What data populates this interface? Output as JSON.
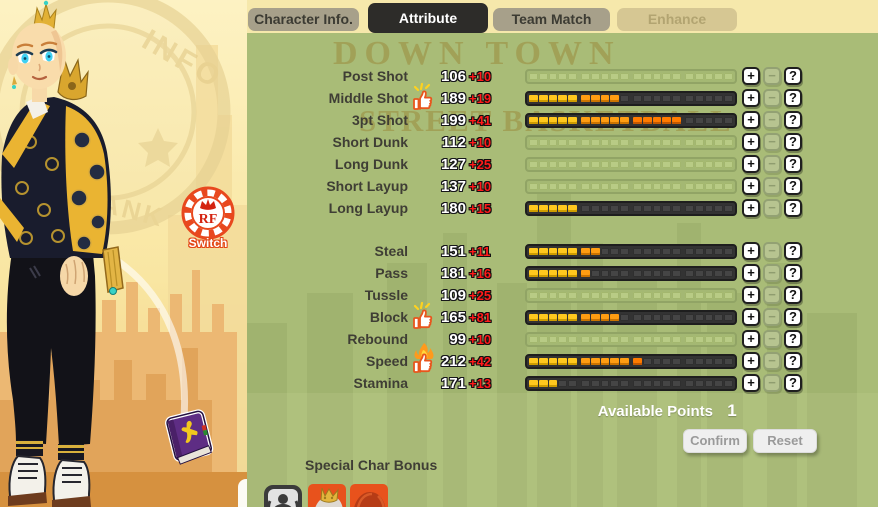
{
  "tabs": [
    {
      "label": "Character Info.",
      "state": "inactive"
    },
    {
      "label": "Attribute",
      "state": "active"
    },
    {
      "label": "Team Match",
      "state": "inactive"
    },
    {
      "label": "Enhance",
      "state": "disabled"
    }
  ],
  "watermark": {
    "line1": "DOWN TOWN",
    "line2": "STREET BASKETBALL"
  },
  "left_panel": {
    "rf_switch": {
      "initials": "RF",
      "label": "Switch"
    },
    "item": "skill-book"
  },
  "attributes": {
    "group1": [
      {
        "label": "Post Shot",
        "value": 106,
        "bonus": "+10",
        "filled": 0,
        "faded": true,
        "icon": null
      },
      {
        "label": "Middle Shot",
        "value": 189,
        "bonus": "+19",
        "filled": 9,
        "faded": false,
        "icon": "thumbs-up"
      },
      {
        "label": "3pt Shot",
        "value": 199,
        "bonus": "+41",
        "filled": 15,
        "faded": false,
        "icon": null
      },
      {
        "label": "Short Dunk",
        "value": 112,
        "bonus": "+10",
        "filled": 0,
        "faded": true,
        "icon": null
      },
      {
        "label": "Long Dunk",
        "value": 127,
        "bonus": "+25",
        "filled": 0,
        "faded": true,
        "icon": null
      },
      {
        "label": "Short Layup",
        "value": 137,
        "bonus": "+10",
        "filled": 0,
        "faded": true,
        "icon": null
      },
      {
        "label": "Long Layup",
        "value": 180,
        "bonus": "+15",
        "filled": 5,
        "faded": false,
        "icon": null
      }
    ],
    "group2": [
      {
        "label": "Steal",
        "value": 151,
        "bonus": "+11",
        "filled": 7,
        "faded": false,
        "icon": null
      },
      {
        "label": "Pass",
        "value": 181,
        "bonus": "+16",
        "filled": 6,
        "faded": false,
        "icon": null
      },
      {
        "label": "Tussle",
        "value": 109,
        "bonus": "+25",
        "filled": 0,
        "faded": true,
        "icon": null
      },
      {
        "label": "Block",
        "value": 165,
        "bonus": "+81",
        "filled": 9,
        "faded": false,
        "icon": "thumbs-up"
      },
      {
        "label": "Rebound",
        "value": 99,
        "bonus": "+10",
        "filled": 0,
        "faded": true,
        "icon": null
      },
      {
        "label": "Speed",
        "value": 212,
        "bonus": "+42",
        "filled": 11,
        "faded": false,
        "icon": "thumbs-up-flame"
      },
      {
        "label": "Stamina",
        "value": 171,
        "bonus": "+13",
        "filled": 3,
        "faded": false,
        "icon": null
      }
    ]
  },
  "row_controls": {
    "plus": "+",
    "minus": "−",
    "help": "?"
  },
  "footer": {
    "available_points_label": "Available Points",
    "available_points_value": "1",
    "confirm_label": "Confirm",
    "reset_label": "Reset"
  },
  "special_bonus": {
    "title": "Special Char Bonus",
    "icons": [
      "team-pose-icon",
      "crowned-character-icon",
      "redhead-character-icon"
    ]
  },
  "colors": {
    "panel_green": "#a9bc77",
    "bar_yellow": "#ffc81e",
    "bar_orange": "#ff9d12",
    "bar_deep_orange": "#ff7b00",
    "bonus_red": "#ff1a1a",
    "tab_active_bg": "#2d2c29",
    "rf_orange": "#e8481e",
    "book_purple": "#5e2d84"
  }
}
